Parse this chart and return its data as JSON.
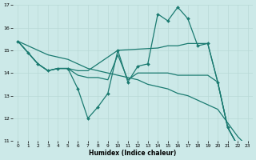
{
  "xlabel": "Humidex (Indice chaleur)",
  "xlim": [
    -0.5,
    23.5
  ],
  "ylim": [
    11,
    17
  ],
  "yticks": [
    11,
    12,
    13,
    14,
    15,
    16,
    17
  ],
  "xticks": [
    0,
    1,
    2,
    3,
    4,
    5,
    6,
    7,
    8,
    9,
    10,
    11,
    12,
    13,
    14,
    15,
    16,
    17,
    18,
    19,
    20,
    21,
    22,
    23
  ],
  "bg_color": "#cce9e8",
  "line_color": "#1a7a70",
  "grid_color": "#b8d8d6",
  "line1": {
    "x": [
      0,
      1,
      2,
      3,
      4,
      5,
      6,
      7,
      8,
      9,
      10,
      11,
      12,
      13,
      14,
      15,
      16,
      17,
      18,
      19,
      20,
      21,
      22,
      23
    ],
    "y": [
      15.4,
      14.9,
      14.4,
      14.1,
      14.2,
      14.2,
      13.3,
      12.0,
      12.5,
      13.1,
      15.0,
      13.6,
      14.3,
      14.4,
      16.6,
      16.3,
      16.9,
      16.4,
      15.2,
      15.3,
      13.6,
      11.6,
      10.8,
      10.75
    ]
  },
  "line2": {
    "x": [
      0,
      1,
      2,
      3,
      4,
      5,
      6,
      7,
      8,
      9,
      10,
      11,
      12,
      13,
      14,
      15,
      16,
      17,
      18,
      19,
      20,
      21,
      22,
      23
    ],
    "y": [
      15.4,
      15.2,
      15.0,
      14.8,
      14.7,
      14.6,
      14.4,
      14.2,
      14.1,
      14.0,
      13.9,
      13.8,
      13.7,
      13.5,
      13.4,
      13.3,
      13.1,
      13.0,
      12.8,
      12.6,
      12.4,
      11.8,
      11.2,
      10.75
    ]
  },
  "line3": {
    "x": [
      0,
      2,
      3,
      4,
      5,
      6,
      7,
      10,
      14,
      15,
      16,
      17,
      18,
      19,
      20,
      21,
      22,
      23
    ],
    "y": [
      15.4,
      14.4,
      14.1,
      14.2,
      14.2,
      14.1,
      14.1,
      15.0,
      15.1,
      15.2,
      15.2,
      15.3,
      15.3,
      15.3,
      13.6,
      11.6,
      10.8,
      10.75
    ]
  },
  "line4": {
    "x": [
      0,
      2,
      3,
      4,
      5,
      6,
      7,
      8,
      9,
      10,
      11,
      12,
      13,
      14,
      15,
      16,
      17,
      18,
      19,
      20,
      21,
      22,
      23
    ],
    "y": [
      15.4,
      14.4,
      14.1,
      14.2,
      14.2,
      13.9,
      13.8,
      13.8,
      13.7,
      14.8,
      13.7,
      14.0,
      14.0,
      14.0,
      14.0,
      13.9,
      13.9,
      13.9,
      13.9,
      13.6,
      11.6,
      10.8,
      10.75
    ]
  }
}
